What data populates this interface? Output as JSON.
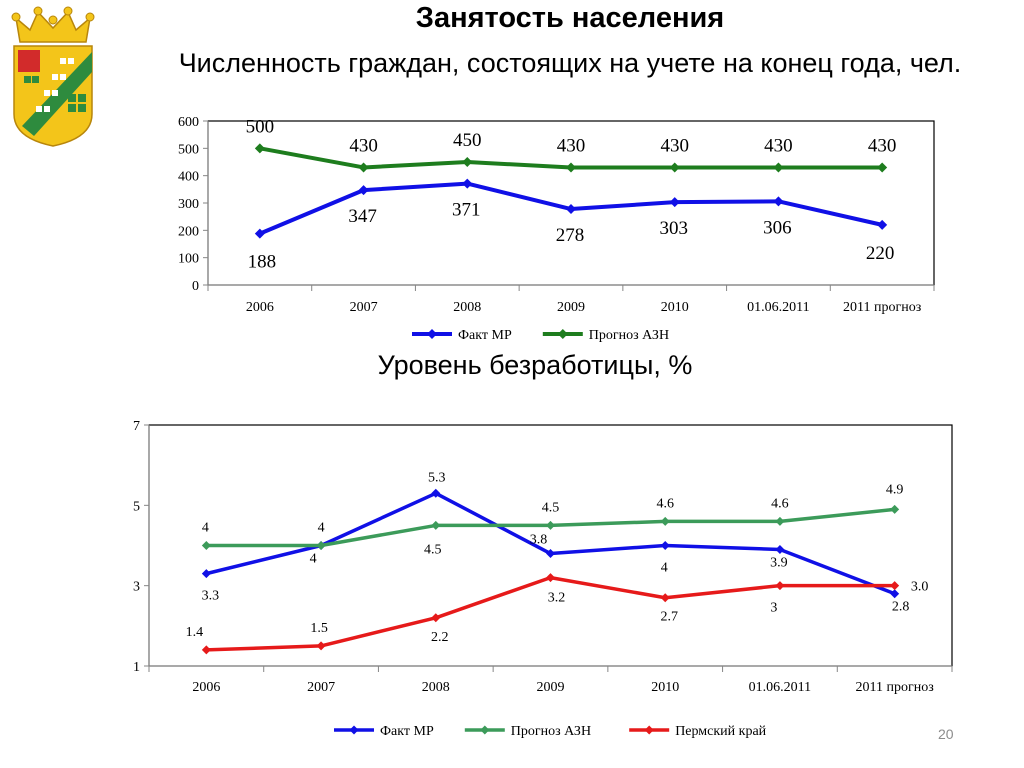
{
  "slide": {
    "title": "Занятость населения",
    "number": "20"
  },
  "colors": {
    "fact": "#1010e6",
    "forecast": "#2e8b2e",
    "forecast2": "#3c9b5a",
    "perm": "#e61a1a",
    "emblem_gold": "#f3c51a",
    "emblem_green": "#2e8b3e"
  },
  "chart_data": [
    {
      "type": "line",
      "title": "Численность граждан, состоящих на учете на конец года, чел.",
      "categories": [
        "2006",
        "2007",
        "2008",
        "2009",
        "2010",
        "01.06.2011",
        "2011 прогноз"
      ],
      "ylim": [
        0,
        600
      ],
      "yticks": [
        0,
        100,
        200,
        300,
        400,
        500,
        600
      ],
      "grid": false,
      "legend": "bottom",
      "series": [
        {
          "name": "Факт МР",
          "values": [
            188,
            347,
            371,
            278,
            303,
            306,
            220
          ],
          "color": "#1010e6"
        },
        {
          "name": "Прогноз АЗН",
          "values": [
            500,
            430,
            450,
            430,
            430,
            430,
            430
          ],
          "color": "#1e7d1e"
        }
      ]
    },
    {
      "type": "line",
      "title": "Уровень безработицы, %",
      "categories": [
        "2006",
        "2007",
        "2008",
        "2009",
        "2010",
        "01.06.2011",
        "2011 прогноз"
      ],
      "ylim": [
        1,
        7
      ],
      "yticks": [
        1,
        3,
        5,
        7
      ],
      "grid": false,
      "legend": "bottom",
      "series": [
        {
          "name": "Факт МР",
          "values": [
            3.3,
            4,
            5.3,
            3.8,
            4,
            3.9,
            2.8
          ],
          "labels": [
            "3.3",
            "4",
            "5.3",
            "3.8",
            "4",
            "3.9",
            "2.8"
          ],
          "color": "#1010e6"
        },
        {
          "name": "Прогноз АЗН",
          "values": [
            4,
            4,
            4.5,
            4.5,
            4.6,
            4.6,
            4.9
          ],
          "labels": [
            "4",
            "4",
            "4.5",
            "4.5",
            "4.6",
            "4.6",
            "4.9"
          ],
          "color": "#3c9b5a"
        },
        {
          "name": "Пермский край",
          "values": [
            1.4,
            1.5,
            2.2,
            3.2,
            2.7,
            3,
            3
          ],
          "labels": [
            "1.4",
            "1.5",
            "2.2",
            "3.2",
            "2.7",
            "3",
            "3.0"
          ],
          "color": "#e61a1a"
        }
      ]
    }
  ]
}
